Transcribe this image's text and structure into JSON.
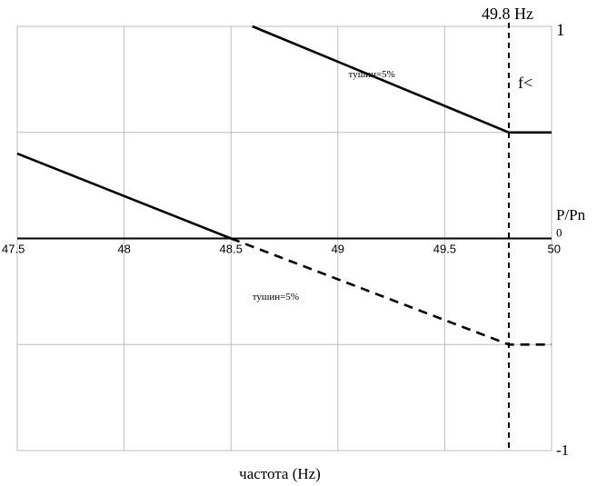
{
  "chart_data": {
    "type": "line",
    "xlabel": "частота (Hz)",
    "ylabel": "P/Pn",
    "xlim": [
      47.5,
      50
    ],
    "ylim": [
      -1,
      1
    ],
    "x_ticks": [
      "47.5",
      "48",
      "48.5",
      "49",
      "49.5",
      "50"
    ],
    "y_ticks": [
      "1",
      "0",
      "-1"
    ],
    "grid": true,
    "vline": {
      "x": 49.8,
      "label": "49.8 Hz",
      "sublabel": "f<"
    },
    "series": [
      {
        "style": "solid",
        "points": [
          [
            48.6,
            1.0
          ],
          [
            49.8,
            0.5
          ],
          [
            50,
            0.5
          ]
        ]
      },
      {
        "style": "solid",
        "points": [
          [
            47.5,
            0.4
          ],
          [
            48.5,
            0.0
          ]
        ]
      },
      {
        "style": "dashed",
        "points": [
          [
            48.5,
            0.0
          ],
          [
            49.8,
            -0.5
          ],
          [
            50,
            -0.5
          ]
        ]
      }
    ],
    "annotations": [
      {
        "text": "тушин=5%",
        "x": 49.05,
        "y": 0.76
      },
      {
        "text": "тушин=5%",
        "x": 48.6,
        "y": -0.29
      }
    ]
  }
}
